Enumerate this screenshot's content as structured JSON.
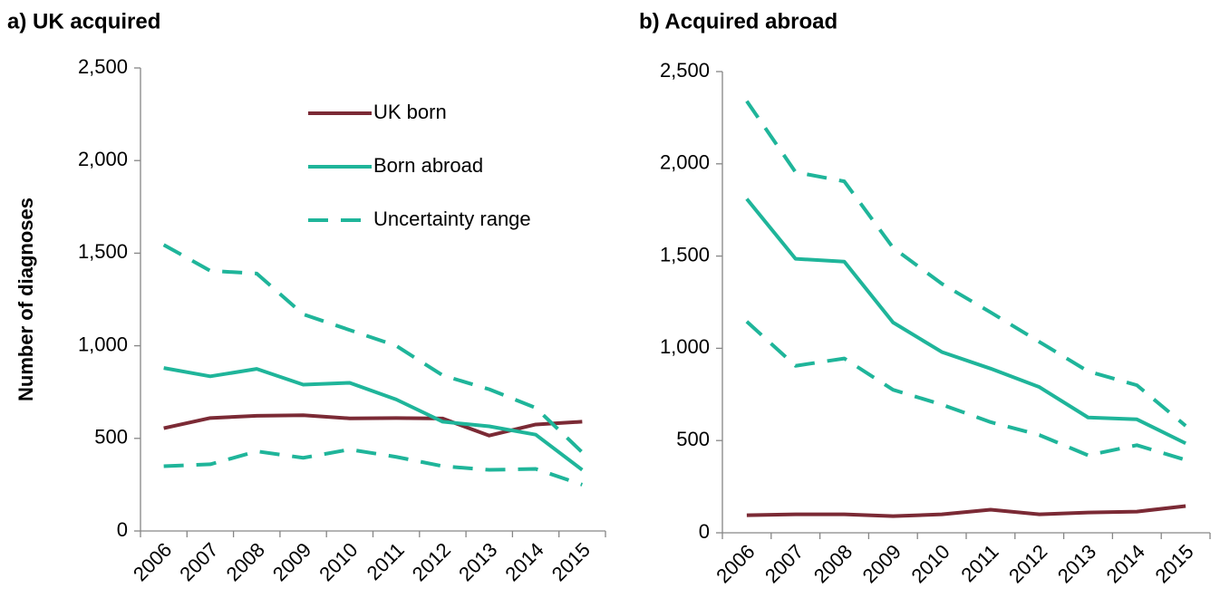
{
  "chart_data": [
    {
      "type": "line",
      "title": "a) UK acquired",
      "ylabel": "Number of diagnoses",
      "categories": [
        "2006",
        "2007",
        "2008",
        "2009",
        "2010",
        "2011",
        "2012",
        "2013",
        "2014",
        "2015"
      ],
      "ylim": [
        0,
        2500
      ],
      "yticks": [
        0,
        500,
        {
          "value": 1000,
          "label": "1,000"
        },
        {
          "value": 1500,
          "label": "1,500"
        },
        {
          "value": 2000,
          "label": "2,000"
        },
        {
          "value": 2500,
          "label": "2,500"
        }
      ],
      "legend": "upper right",
      "series": [
        {
          "name": "UK born",
          "color": "#7b2a35",
          "values": [
            555,
            610,
            622,
            625,
            608,
            610,
            607,
            515,
            575,
            590
          ]
        },
        {
          "name": "Born abroad",
          "color": "#1fb59a",
          "values": [
            880,
            835,
            875,
            790,
            800,
            710,
            590,
            565,
            520,
            330
          ]
        },
        {
          "name": "Uncertainty range",
          "color": "#1fb59a",
          "dashed": true,
          "low": [
            350,
            360,
            430,
            395,
            440,
            400,
            350,
            330,
            335,
            250
          ],
          "high": [
            1545,
            1405,
            1390,
            1170,
            1085,
            1000,
            840,
            765,
            665,
            425
          ]
        }
      ]
    },
    {
      "type": "line",
      "title": "b) Acquired abroad",
      "categories": [
        "2006",
        "2007",
        "2008",
        "2009",
        "2010",
        "2011",
        "2012",
        "2013",
        "2014",
        "2015"
      ],
      "ylim": [
        0,
        2500
      ],
      "yticks": [
        0,
        500,
        {
          "value": 1000,
          "label": "1,000"
        },
        {
          "value": 1500,
          "label": "1,500"
        },
        {
          "value": 2000,
          "label": "2,000"
        },
        {
          "value": 2500,
          "label": "2,500"
        }
      ],
      "series": [
        {
          "color": "#7b2a35",
          "values": [
            95,
            100,
            100,
            90,
            100,
            125,
            100,
            110,
            115,
            145
          ]
        },
        {
          "color": "#1fb59a",
          "values": [
            1810,
            1485,
            1470,
            1140,
            980,
            890,
            790,
            625,
            615,
            485
          ]
        },
        {
          "color": "#1fb59a",
          "dashed": true,
          "low": [
            1145,
            905,
            945,
            775,
            695,
            600,
            530,
            420,
            475,
            395
          ],
          "high": [
            2340,
            1955,
            1905,
            1545,
            1350,
            1195,
            1035,
            875,
            800,
            580
          ]
        }
      ]
    }
  ]
}
